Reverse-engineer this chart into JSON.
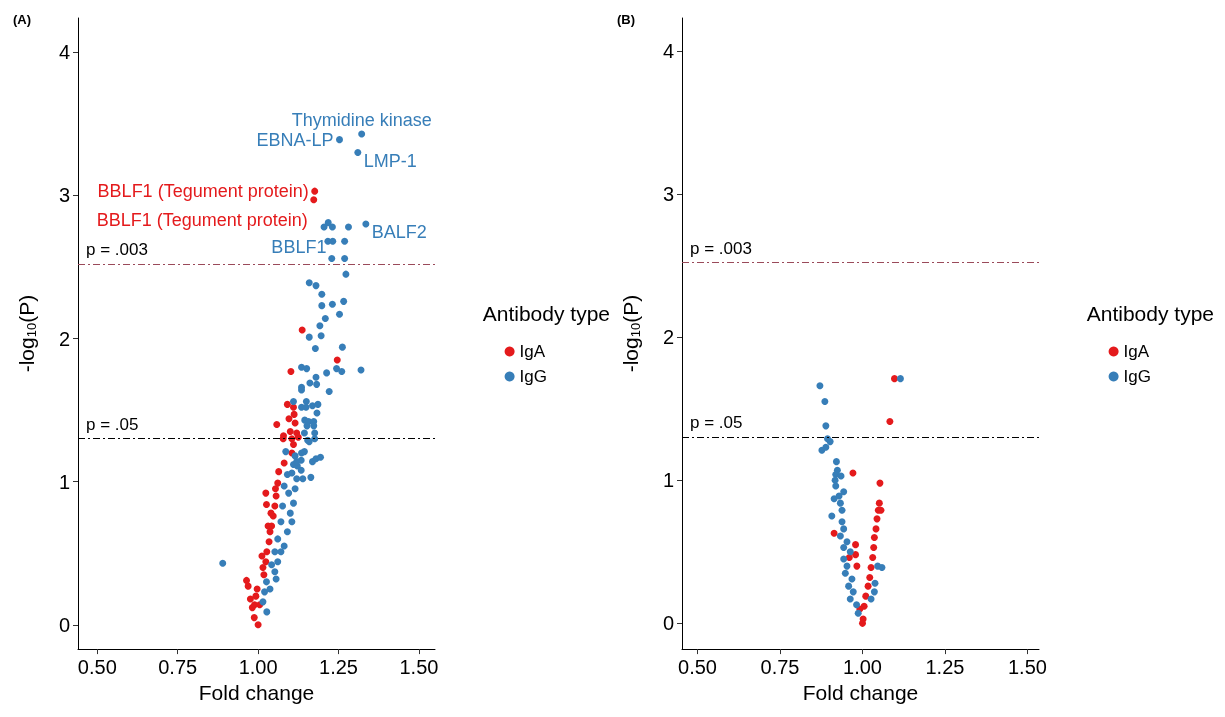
{
  "chart_data": [
    {
      "type": "scatter",
      "title": "(A)",
      "xlabel": "Fold change",
      "ylabel": "-log$_{10}$(P)",
      "legend_title": "Antibody type",
      "legend": "right",
      "grid": false,
      "marker": "circle",
      "xlim": [
        0.44,
        1.55
      ],
      "ylim": [
        -0.17,
        4.24
      ],
      "xticks": [
        {
          "value": 0.5,
          "label": "0.50"
        },
        {
          "value": 0.75,
          "label": "0.75"
        },
        {
          "value": 1,
          "label": "1.00"
        },
        {
          "value": 1.25,
          "label": "1.25"
        },
        {
          "value": 1.5,
          "label": "1.50"
        }
      ],
      "yticks": [
        0,
        1,
        2,
        3,
        4
      ],
      "ref_lines": [
        {
          "axis": "y",
          "value": 2.52,
          "label": "p = .003",
          "color": "#9a4a5a",
          "line_style": "dashed"
        },
        {
          "axis": "y",
          "value": 1.3,
          "label": "p = .05",
          "color": "#000000",
          "line_style": "dashed"
        }
      ],
      "annotations": [
        {
          "text": "Thymidine kinase",
          "x": 1.322,
          "y": 3.43
        },
        {
          "text": "EBNA-LP",
          "x": 1.253,
          "y": 3.39
        },
        {
          "text": "LMP-1",
          "x": 1.31,
          "y": 3.3
        },
        {
          "text": "BBLF1 (Tegument protein)",
          "x": 1.176,
          "y": 3.03
        },
        {
          "text": "BBLF1 (Tegument protein)",
          "x": 1.173,
          "y": 2.97
        },
        {
          "text": "BBLF1",
          "x": 1.231,
          "y": 2.78
        },
        {
          "text": "BALF2",
          "x": 1.335,
          "y": 2.8
        }
      ],
      "series": [
        {
          "name": "IgA",
          "color": "#e41a1c",
          "x": [
            1.176,
            1.173,
            1.137,
            1.246,
            1.102,
            1.091,
            1.11,
            1.112,
            1.096,
            1.115,
            1.058,
            1.1,
            1.12,
            1.105,
            1.125,
            1.079,
            1.078,
            1.11,
            1.105,
            1.081,
            0.964,
            0.969,
            0.976,
            0.982,
            0.988,
            1.0,
            1.018,
            1.024,
            1.027,
            1.034,
            1.037,
            1.042,
            1.047,
            1.052,
            1.056,
            1.054,
            1.061,
            1.064,
            1.024,
            1.026,
            1.031,
            1.012,
            0.997,
            0.993,
            0.989,
            1.005,
            1.015,
            1.04
          ],
          "values": [
            3.03,
            2.97,
            2.06,
            1.85,
            1.77,
            1.54,
            1.52,
            1.47,
            1.44,
            1.41,
            1.4,
            1.35,
            1.34,
            1.3,
            1.31,
            1.32,
            1.3,
            1.26,
            1.2,
            1.13,
            0.31,
            0.27,
            0.18,
            0.12,
            0.05,
            0,
            0.35,
            0.44,
            0.51,
            0.58,
            0.65,
            0.69,
            0.76,
            0.83,
            0.9,
            0.95,
            0.99,
            1.07,
            0.92,
            0.84,
            0.69,
            0.48,
            0.25,
            0.2,
            0.14,
            0.14,
            0.4,
            0.78
          ]
        },
        {
          "name": "IgG",
          "color": "#377eb8",
          "x": [
            1.322,
            1.253,
            1.31,
            1.205,
            1.218,
            1.231,
            1.281,
            1.335,
            1.217,
            1.232,
            1.269,
            1.229,
            1.269,
            1.273,
            1.159,
            1.18,
            1.198,
            1.198,
            1.231,
            1.266,
            1.253,
            1.209,
            1.192,
            1.159,
            1.196,
            1.262,
            1.178,
            1.135,
            1.151,
            1.244,
            1.26,
            1.213,
            1.32,
            1.18,
            1.161,
            1.182,
            1.135,
            1.135,
            1.221,
            1.11,
            1.15,
            1.135,
            1.149,
            1.169,
            1.186,
            1.183,
            1.145,
            1.157,
            1.173,
            1.152,
            1.173,
            1.144,
            1.176,
            1.154,
            1.176,
            1.159,
            1.086,
            1.135,
            1.144,
            1.115,
            1.134,
            1.169,
            1.18,
            1.194,
            1.11,
            1.122,
            1.134,
            1.105,
            0.89,
            1.015,
            1.02,
            1.026,
            1.052,
            1.061,
            1.071,
            1.081,
            1.091,
            1.105,
            1.1,
            1.11,
            1.095,
            1.115,
            1.12,
            1.139,
            1.164,
            1.12,
            1.091,
            1.081,
            1.076,
            1.071,
            1.061,
            1.052,
            1.042,
            1.056,
            1.037,
            1.027
          ],
          "values": [
            3.43,
            3.39,
            3.3,
            2.78,
            2.81,
            2.78,
            2.78,
            2.8,
            2.68,
            2.68,
            2.68,
            2.56,
            2.56,
            2.45,
            2.39,
            2.37,
            2.31,
            2.23,
            2.24,
            2.26,
            2.17,
            2.14,
            2.09,
            2.01,
            2.02,
            1.94,
            1.93,
            1.8,
            1.79,
            1.79,
            1.77,
            1.76,
            1.78,
            1.73,
            1.69,
            1.68,
            1.66,
            1.64,
            1.63,
            1.56,
            1.56,
            1.52,
            1.52,
            1.53,
            1.54,
            1.48,
            1.43,
            1.42,
            1.42,
            1.39,
            1.39,
            1.34,
            1.34,
            1.29,
            1.3,
            1.28,
            1.21,
            1.2,
            1.21,
            1.18,
            1.15,
            1.14,
            1.16,
            1.17,
            1.12,
            1.11,
            1.08,
            1.06,
            0.43,
            0.16,
            0.23,
            0.3,
            0.37,
            0.44,
            0.51,
            0.55,
            0.65,
            0.72,
            0.78,
            0.85,
            0.92,
            0.95,
            1.02,
            1.02,
            1.03,
            1.14,
            1.05,
            0.97,
            0.83,
            0.72,
            0.6,
            0.51,
            0.42,
            0.32,
            0.25,
            0.09
          ]
        }
      ]
    },
    {
      "type": "scatter",
      "title": "(B)",
      "xlabel": "Fold change",
      "ylabel": "-log$_{10}$(P)",
      "legend_title": "Antibody type",
      "legend": "right",
      "grid": false,
      "marker": "circle",
      "xlim": [
        0.453,
        1.535
      ],
      "ylim": [
        -0.18,
        4.23
      ],
      "xticks": [
        {
          "value": 0.5,
          "label": "0.50"
        },
        {
          "value": 0.75,
          "label": "0.75"
        },
        {
          "value": 1,
          "label": "1.00"
        },
        {
          "value": 1.25,
          "label": "1.25"
        },
        {
          "value": 1.5,
          "label": "1.50"
        }
      ],
      "yticks": [
        0,
        1,
        2,
        3,
        4
      ],
      "ref_lines": [
        {
          "axis": "y",
          "value": 2.52,
          "label": "p = .003",
          "color": "#9a4a5a",
          "line_style": "dashed"
        },
        {
          "axis": "y",
          "value": 1.3,
          "label": "p = .05",
          "color": "#000000",
          "line_style": "dashed"
        }
      ],
      "series": [
        {
          "name": "IgA",
          "color": "#e41a1c",
          "x": [
            1.097,
            1.083,
            1.005,
            1.01,
            1.017,
            1.022,
            1.026,
            1.031,
            1.034,
            1.036,
            1.041,
            1.044,
            1.048,
            1.051,
            1.056,
            1.053,
            0.971,
            0.914,
            0.979,
            0.979,
            0.983,
            0.96,
            0.992,
            1.002,
            1.0
          ],
          "values": [
            1.71,
            1.41,
            0.12,
            0.19,
            0.26,
            0.32,
            0.39,
            0.46,
            0.53,
            0.6,
            0.66,
            0.73,
            0.79,
            0.84,
            0.79,
            0.98,
            1.05,
            0.63,
            0.55,
            0.48,
            0.4,
            0.46,
            0.1,
            0.03,
            0
          ]
        },
        {
          "name": "IgG",
          "color": "#377eb8",
          "x": [
            0.871,
            0.886,
            0.889,
            0.894,
            0.902,
            0.889,
            0.877,
            1.115,
            0.921,
            0.924,
            0.919,
            0.935,
            0.917,
            0.919,
            0.943,
            0.929,
            0.914,
            0.933,
            0.938,
            0.907,
            0.938,
            0.943,
            0.933,
            0.953,
            0.943,
            0.963,
            0.943,
            0.953,
            0.948,
            0.968,
            0.958,
            0.972,
            0.963,
            0.982,
            0.987,
            1.046,
            1.059,
            1.038,
            1.036,
            1.026
          ],
          "values": [
            1.66,
            1.55,
            1.38,
            1.29,
            1.27,
            1.23,
            1.21,
            1.71,
            1.13,
            1.07,
            1.04,
            1.03,
            1.0,
            0.96,
            0.92,
            0.89,
            0.87,
            0.84,
            0.79,
            0.75,
            0.71,
            0.66,
            0.61,
            0.57,
            0.53,
            0.5,
            0.45,
            0.4,
            0.35,
            0.31,
            0.26,
            0.22,
            0.17,
            0.13,
            0.07,
            0.4,
            0.39,
            0.28,
            0.22,
            0.17
          ]
        }
      ]
    }
  ]
}
